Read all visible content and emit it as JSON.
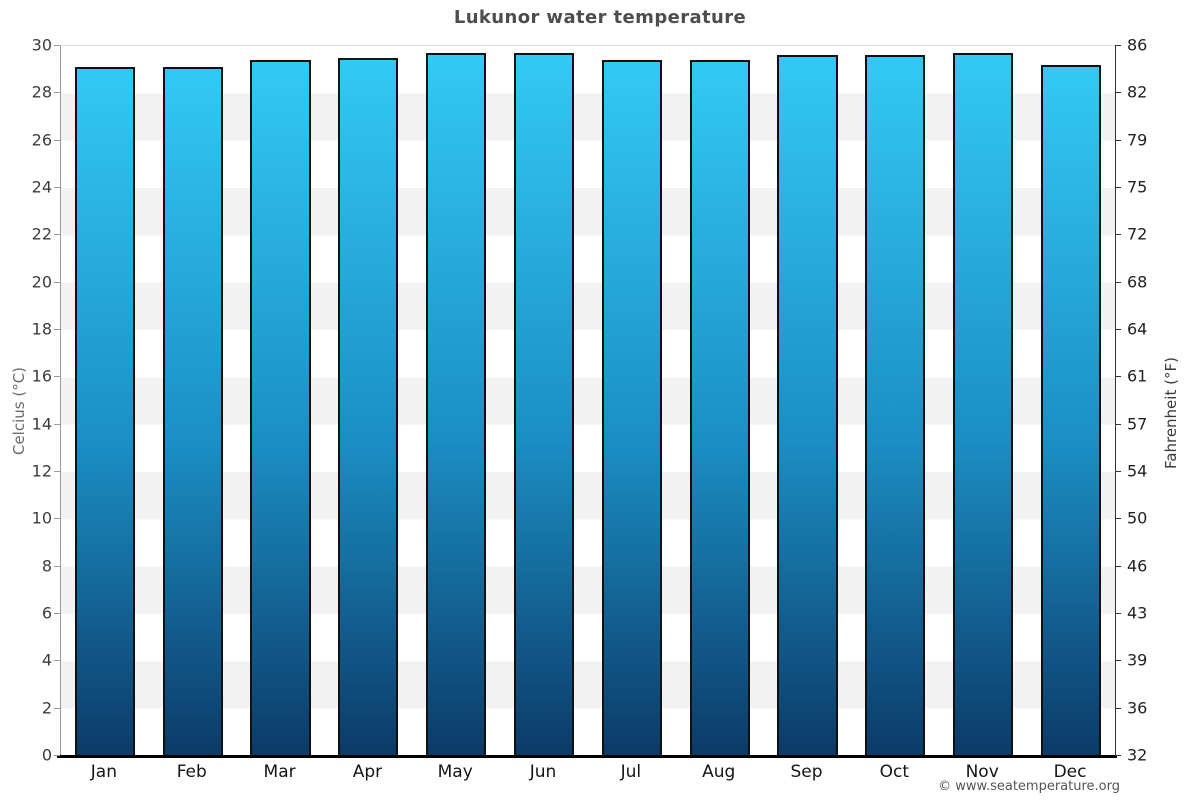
{
  "chart_data": {
    "type": "bar",
    "title": "Lukunor water temperature",
    "categories": [
      "Jan",
      "Feb",
      "Mar",
      "Apr",
      "May",
      "Jun",
      "Jul",
      "Aug",
      "Sep",
      "Oct",
      "Nov",
      "Dec"
    ],
    "values": [
      29.1,
      29.1,
      29.4,
      29.5,
      29.7,
      29.7,
      29.4,
      29.4,
      29.6,
      29.6,
      29.7,
      29.2
    ],
    "unit": "°C",
    "xlabel": "",
    "ylabel_left": "Celcius (°C)",
    "ylabel_right": "Fahrenheit (°F)",
    "ylim": [
      0,
      30
    ],
    "yticks_celsius": [
      30,
      28,
      26,
      24,
      22,
      20,
      18,
      16,
      14,
      12,
      10,
      8,
      6,
      4,
      2,
      0
    ],
    "yticks_fahrenheit": [
      86,
      82,
      79,
      75,
      72,
      68,
      64,
      61,
      57,
      54,
      50,
      46,
      43,
      39,
      36,
      32
    ],
    "grid": "alternating horizontal bands every 2 °C",
    "legend": null,
    "colors": {
      "bar_gradient_top": "#33c9f5",
      "bar_gradient_bottom": "#0c3a67",
      "bar_border": "#111111",
      "stripe": "#f2f2f2",
      "title_text": "#4d4d4d",
      "baseline": "#000000"
    }
  },
  "footer": {
    "credit": "© www.seatemperature.org"
  }
}
